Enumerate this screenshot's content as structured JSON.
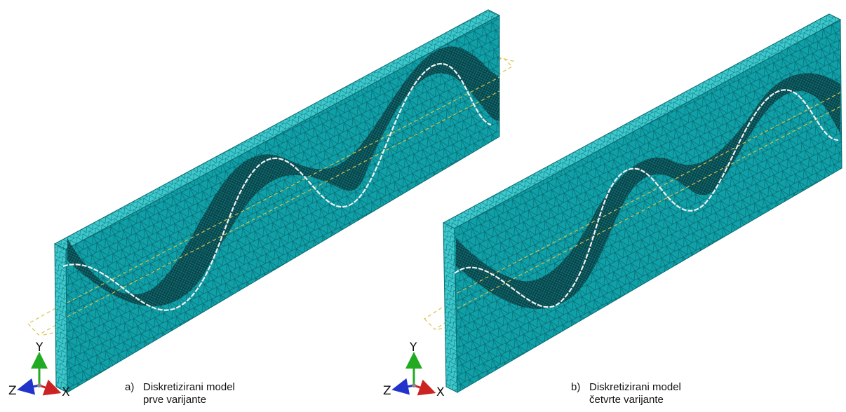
{
  "panels": [
    {
      "id": "a",
      "caption_letter": "a)",
      "caption_line1": "Diskretizirani model",
      "caption_line2": "prve varijante"
    },
    {
      "id": "b",
      "caption_letter": "b)",
      "caption_line1": "Diskretizirani model",
      "caption_line2": "četvrte varijante"
    }
  ],
  "triad_labels": {
    "y": "Y",
    "z": "Z",
    "x": "X"
  },
  "colors": {
    "mesh_fill": "#10a0a8",
    "mesh_top": "#3fc8cc",
    "mesh_edge": "#0a6a70",
    "dense_mesh": "#0b3a3e",
    "tendon": "#f2f2f2",
    "dashed_box": "#d9c24a",
    "axis_y": "#22aa22",
    "axis_x": "#cc2222",
    "axis_z": "#2233cc"
  }
}
